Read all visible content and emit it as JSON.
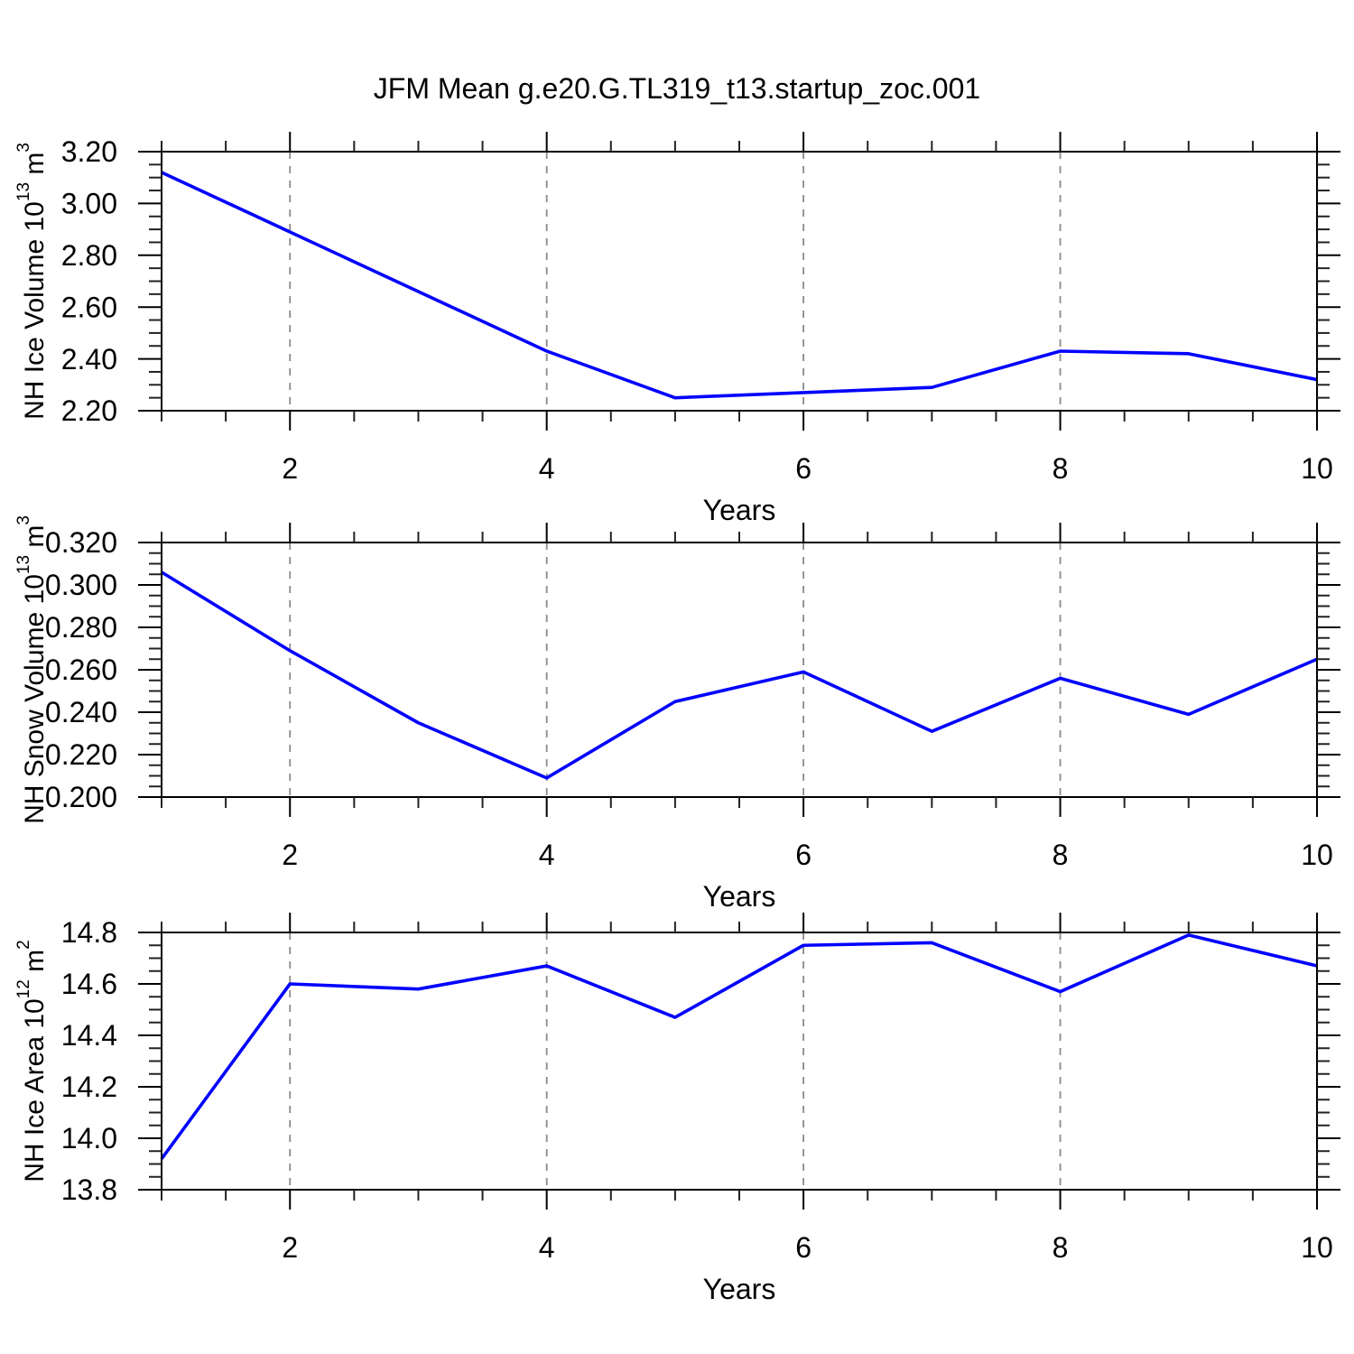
{
  "title": "JFM Mean g.e20.G.TL319_t13.startup_zoc.001",
  "colors": {
    "line": "#0000ff",
    "grid": "#8a8a8a",
    "axis": "#000000",
    "minor_tick": "#222222",
    "text": "#000000",
    "background": "#ffffff"
  },
  "x_axis": {
    "label": "Years",
    "min": 1,
    "max": 10,
    "major_ticks": [
      2,
      4,
      6,
      8,
      10
    ],
    "xtick_labels": [
      "2",
      "4",
      "6",
      "8",
      "10"
    ],
    "minor_step": 0.5,
    "grid_lines": [
      2,
      4,
      6,
      8
    ]
  },
  "chart_data": [
    {
      "type": "line",
      "panel": "nh-ice-volume",
      "ylabel": {
        "text": "NH Ice Volume",
        "scale_base": "10",
        "scale_exp": "13",
        "unit_base": "m",
        "unit_exp": "3"
      },
      "xlabel": "Years",
      "xlim": [
        1,
        10
      ],
      "ylim": [
        2.2,
        3.2
      ],
      "ytick_step": 0.2,
      "yminor_step": 0.05,
      "ytick_labels": [
        "2.20",
        "2.40",
        "2.60",
        "2.80",
        "3.00",
        "3.20"
      ],
      "grid": "vertical-dashed",
      "x": [
        1,
        2,
        3,
        4,
        5,
        6,
        7,
        8,
        9,
        10
      ],
      "values": [
        3.12,
        2.89,
        2.66,
        2.43,
        2.25,
        2.27,
        2.29,
        2.43,
        2.42,
        2.32
      ]
    },
    {
      "type": "line",
      "panel": "nh-snow-volume",
      "ylabel": {
        "text": "NH Snow Volume",
        "scale_base": "10",
        "scale_exp": "13",
        "unit_base": "m",
        "unit_exp": "3"
      },
      "xlabel": "Years",
      "xlim": [
        1,
        10
      ],
      "ylim": [
        0.2,
        0.32
      ],
      "ytick_step": 0.02,
      "yminor_step": 0.005,
      "ytick_labels": [
        "0.200",
        "0.220",
        "0.240",
        "0.260",
        "0.280",
        "0.300",
        "0.320"
      ],
      "grid": "vertical-dashed",
      "x": [
        1,
        2,
        3,
        4,
        5,
        6,
        7,
        8,
        9,
        10
      ],
      "values": [
        0.306,
        0.269,
        0.235,
        0.209,
        0.245,
        0.259,
        0.231,
        0.256,
        0.239,
        0.265
      ]
    },
    {
      "type": "line",
      "panel": "nh-ice-area",
      "ylabel": {
        "text": "NH Ice Area",
        "scale_base": "10",
        "scale_exp": "12",
        "unit_base": "m",
        "unit_exp": "2"
      },
      "xlabel": "Years",
      "xlim": [
        1,
        10
      ],
      "ylim": [
        13.8,
        14.8
      ],
      "ytick_step": 0.2,
      "yminor_step": 0.05,
      "ytick_labels": [
        "13.8",
        "14.0",
        "14.2",
        "14.4",
        "14.6",
        "14.8"
      ],
      "grid": "vertical-dashed",
      "x": [
        1,
        2,
        3,
        4,
        5,
        6,
        7,
        8,
        9,
        10
      ],
      "values": [
        13.92,
        14.6,
        14.58,
        14.67,
        14.47,
        14.75,
        14.76,
        14.57,
        14.79,
        14.67
      ]
    }
  ]
}
